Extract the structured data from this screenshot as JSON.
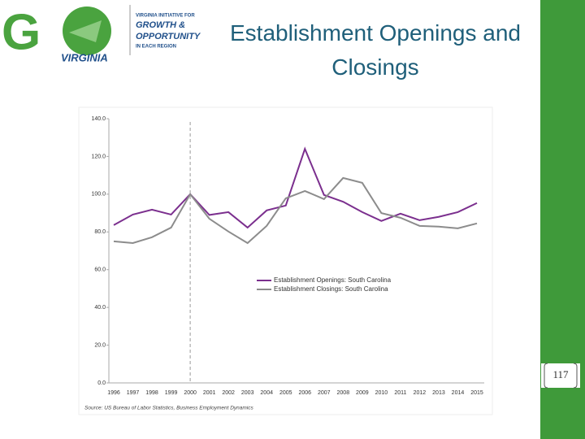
{
  "logo": {
    "mark": "G",
    "wordmark": "VIRGINIA",
    "tagline_top": "VIRGINIA INITIATIVE FOR",
    "tagline_growth": "GROWTH &",
    "tagline_opportunity": "OPPORTUNITY",
    "tagline_bottom": "IN EACH REGION"
  },
  "slide_title": "Establishment Openings and Closings",
  "page_number": "117",
  "chart_data": {
    "type": "line",
    "categories": [
      "1996",
      "1997",
      "1998",
      "1999",
      "2000",
      "2001",
      "2002",
      "2003",
      "2004",
      "2005",
      "2006",
      "2007",
      "2008",
      "2009",
      "2010",
      "2011",
      "2012",
      "2013",
      "2014",
      "2015"
    ],
    "series": [
      {
        "name": "Establishment Openings: South Carolina",
        "color": "#7b2f8e",
        "values": [
          83.6,
          89.2,
          91.8,
          89.2,
          100,
          89,
          90.5,
          82.3,
          91.4,
          94,
          124,
          99.6,
          96,
          90.5,
          85.8,
          89.7,
          86.2,
          88,
          90.5,
          95.3
        ]
      },
      {
        "name": "Establishment Closings: South Carolina",
        "color": "#8c8c8c",
        "values": [
          75,
          74.1,
          77.2,
          82.3,
          100,
          87,
          80.2,
          74.1,
          83.2,
          97.8,
          101.7,
          97.4,
          108.6,
          106,
          90,
          87.5,
          83.2,
          82.8,
          81.9,
          84.5
        ]
      }
    ],
    "ylim": [
      0,
      140
    ],
    "yticks": [
      {
        "value": 0,
        "label": "0.0"
      },
      {
        "value": 20,
        "label": "20.0"
      },
      {
        "value": 40,
        "label": "40.0"
      },
      {
        "value": 60,
        "label": "60.0"
      },
      {
        "value": 80,
        "label": "80.0"
      },
      {
        "value": 100,
        "label": "100.0"
      },
      {
        "value": 120,
        "label": "120.0"
      },
      {
        "value": 140,
        "label": "140.0"
      }
    ],
    "grid": false,
    "source": "Source: US Bureau of Labor Statistics, Business Employment Dynamics"
  }
}
